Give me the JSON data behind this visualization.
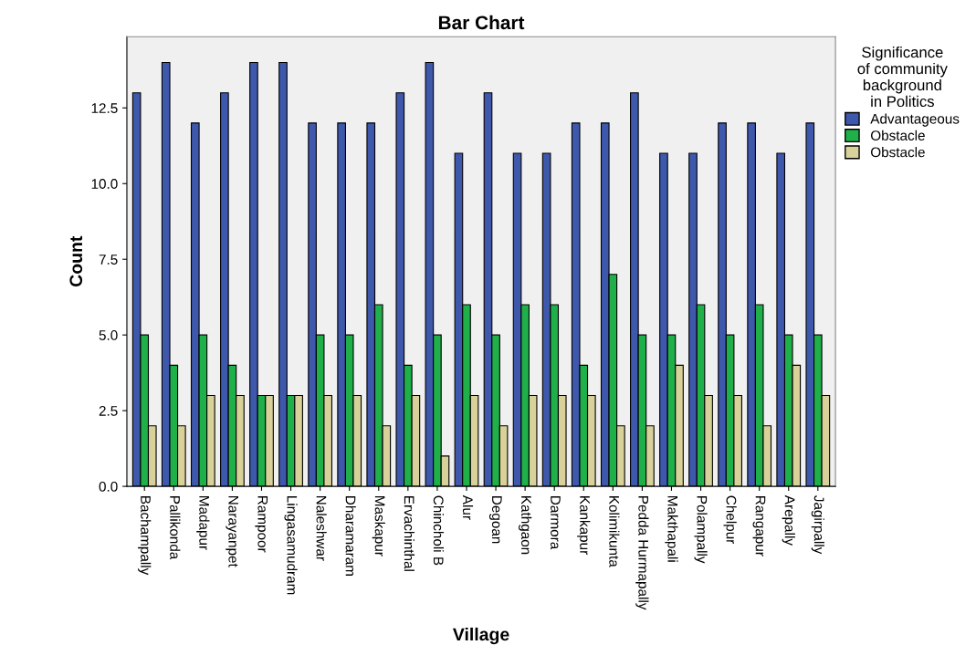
{
  "chart_data": {
    "type": "bar",
    "title": "Bar Chart",
    "xlabel": "Village",
    "ylabel": "Count",
    "legend_title": "Significance\nof community\nbackground\nin Politics",
    "legend": "right",
    "categories": [
      "Bachampally",
      "Pallikonda",
      "Madapur",
      "Narayanpet",
      "Rampoor",
      "Lingasamudram",
      "Naleshwar",
      "Dharamaram",
      "Maskapur",
      "Ervachinthal",
      "Chincholi B",
      "Alur",
      "Degoan",
      "Kathgaon",
      "Darmora",
      "Kankapur",
      "Kolimikunta",
      "Pedda Hurmapally",
      "Makthapali",
      "Polampally",
      "Chelpur",
      "Rangapur",
      "Arepally",
      "Jagirpally"
    ],
    "series": [
      {
        "name": "Advantageous",
        "color": "#3e58ac",
        "values": [
          13,
          14,
          12,
          13,
          14,
          14,
          12,
          12,
          12,
          13,
          14,
          11,
          13,
          11,
          11,
          12,
          12,
          13,
          11,
          11,
          12,
          12,
          11,
          12
        ]
      },
      {
        "name": "Obstacle",
        "color": "#20b04a",
        "values": [
          5,
          4,
          5,
          4,
          3,
          3,
          5,
          5,
          6,
          4,
          5,
          6,
          5,
          6,
          6,
          4,
          7,
          5,
          5,
          6,
          5,
          6,
          5,
          5
        ]
      },
      {
        "name": "Obstacle",
        "color": "#d8d19a",
        "values": [
          2,
          2,
          3,
          3,
          3,
          3,
          3,
          3,
          2,
          3,
          1,
          3,
          2,
          3,
          3,
          3,
          2,
          2,
          4,
          3,
          3,
          2,
          4,
          3
        ]
      }
    ],
    "ylim": [
      0,
      14.85
    ],
    "yticks": [
      {
        "value": 0,
        "label": "0.0"
      },
      {
        "value": 2.5,
        "label": "2.5"
      },
      {
        "value": 5,
        "label": "5.0"
      },
      {
        "value": 7.5,
        "label": "7.5"
      },
      {
        "value": 10,
        "label": "10.0"
      },
      {
        "value": 12.5,
        "label": "12.5"
      }
    ],
    "grid": false
  }
}
